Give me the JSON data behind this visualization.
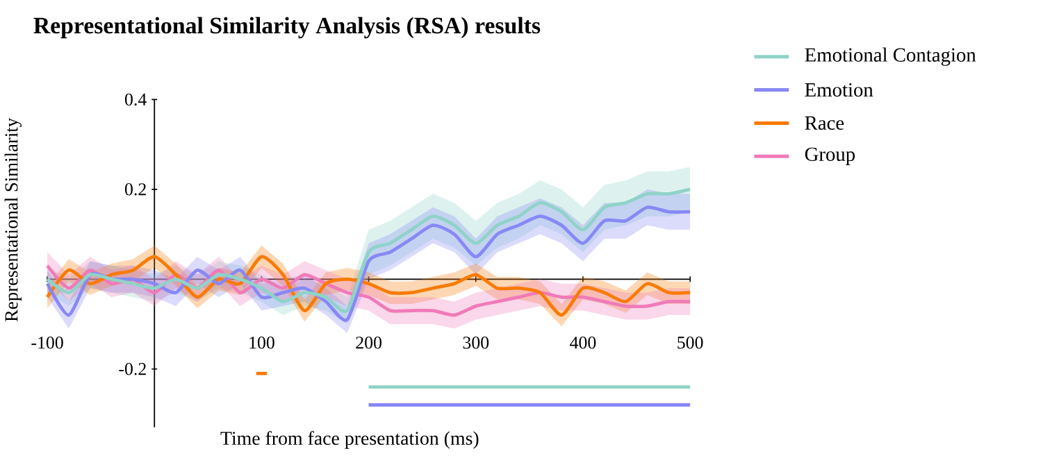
{
  "chart_data": {
    "type": "line",
    "title": "Representational Similarity Analysis (RSA) results",
    "xlabel": "Time from face presentation (ms)",
    "ylabel": "Representational Similarity",
    "x": [
      -100,
      -80,
      -60,
      -40,
      -20,
      0,
      20,
      40,
      60,
      80,
      100,
      120,
      140,
      160,
      180,
      200,
      220,
      240,
      260,
      280,
      300,
      320,
      340,
      360,
      380,
      400,
      420,
      440,
      460,
      480,
      500
    ],
    "series": [
      {
        "name": "Emotional Contagion",
        "color": "#8fd3c8",
        "values": [
          0.0,
          -0.03,
          0.01,
          0.0,
          -0.01,
          -0.02,
          0.0,
          -0.02,
          0.01,
          0.0,
          -0.02,
          -0.05,
          -0.03,
          -0.04,
          -0.07,
          0.06,
          0.08,
          0.11,
          0.14,
          0.12,
          0.08,
          0.12,
          0.14,
          0.17,
          0.15,
          0.11,
          0.16,
          0.17,
          0.19,
          0.19,
          0.2
        ],
        "lower": [
          -0.03,
          -0.06,
          -0.02,
          -0.03,
          -0.04,
          -0.05,
          -0.03,
          -0.05,
          -0.02,
          -0.03,
          -0.05,
          -0.08,
          -0.06,
          -0.07,
          -0.1,
          0.01,
          0.03,
          0.06,
          0.09,
          0.07,
          0.03,
          0.07,
          0.09,
          0.12,
          0.1,
          0.06,
          0.11,
          0.12,
          0.14,
          0.14,
          0.15
        ],
        "upper": [
          0.03,
          0.0,
          0.04,
          0.03,
          0.02,
          0.01,
          0.03,
          0.01,
          0.04,
          0.03,
          0.01,
          -0.02,
          0.0,
          -0.01,
          -0.04,
          0.11,
          0.13,
          0.16,
          0.19,
          0.17,
          0.13,
          0.17,
          0.19,
          0.22,
          0.2,
          0.16,
          0.21,
          0.22,
          0.24,
          0.24,
          0.25
        ]
      },
      {
        "name": "Emotion",
        "color": "#8888f5",
        "values": [
          -0.01,
          -0.08,
          0.01,
          0.0,
          0.0,
          -0.01,
          -0.03,
          0.02,
          -0.01,
          0.02,
          -0.04,
          -0.03,
          -0.02,
          -0.05,
          -0.09,
          0.04,
          0.06,
          0.09,
          0.12,
          0.1,
          0.05,
          0.1,
          0.12,
          0.14,
          0.12,
          0.08,
          0.13,
          0.13,
          0.16,
          0.15,
          0.15
        ],
        "lower": [
          -0.04,
          -0.11,
          -0.02,
          -0.03,
          -0.03,
          -0.04,
          -0.06,
          -0.01,
          -0.04,
          -0.01,
          -0.07,
          -0.06,
          -0.05,
          -0.08,
          -0.12,
          0.0,
          0.02,
          0.05,
          0.08,
          0.06,
          0.01,
          0.06,
          0.08,
          0.1,
          0.08,
          0.04,
          0.09,
          0.09,
          0.12,
          0.11,
          0.11
        ],
        "upper": [
          0.02,
          -0.05,
          0.04,
          0.03,
          0.03,
          0.02,
          0.0,
          0.05,
          0.02,
          0.05,
          -0.01,
          0.0,
          0.01,
          -0.02,
          -0.06,
          0.08,
          0.1,
          0.13,
          0.16,
          0.14,
          0.09,
          0.14,
          0.16,
          0.18,
          0.16,
          0.12,
          0.17,
          0.17,
          0.2,
          0.19,
          0.19
        ]
      },
      {
        "name": "Race",
        "color": "#f97b06",
        "values": [
          -0.04,
          0.02,
          -0.01,
          0.01,
          0.02,
          0.05,
          0.01,
          -0.04,
          0.0,
          -0.01,
          0.05,
          0.01,
          -0.07,
          -0.01,
          0.0,
          -0.01,
          -0.03,
          -0.03,
          -0.02,
          -0.01,
          0.01,
          -0.02,
          -0.02,
          -0.03,
          -0.08,
          -0.02,
          -0.03,
          -0.05,
          -0.01,
          -0.03,
          -0.03
        ],
        "lower": [
          -0.065,
          -0.005,
          -0.035,
          -0.015,
          -0.005,
          0.025,
          -0.015,
          -0.065,
          -0.025,
          -0.035,
          0.025,
          -0.015,
          -0.095,
          -0.035,
          -0.025,
          -0.035,
          -0.055,
          -0.055,
          -0.045,
          -0.035,
          -0.015,
          -0.045,
          -0.045,
          -0.055,
          -0.105,
          -0.045,
          -0.055,
          -0.075,
          -0.035,
          -0.055,
          -0.055
        ],
        "upper": [
          -0.015,
          0.045,
          0.015,
          0.035,
          0.045,
          0.075,
          0.035,
          -0.015,
          0.025,
          0.015,
          0.075,
          0.035,
          -0.045,
          0.015,
          0.025,
          0.015,
          -0.005,
          -0.005,
          0.005,
          0.015,
          0.035,
          0.005,
          0.005,
          -0.005,
          -0.055,
          0.005,
          -0.005,
          -0.025,
          0.015,
          -0.005,
          -0.005
        ]
      },
      {
        "name": "Group",
        "color": "#f07ab8",
        "values": [
          0.03,
          -0.02,
          0.02,
          -0.01,
          0.0,
          -0.03,
          0.01,
          -0.02,
          0.02,
          -0.03,
          0.0,
          -0.02,
          0.01,
          -0.01,
          -0.03,
          -0.04,
          -0.07,
          -0.07,
          -0.07,
          -0.08,
          -0.06,
          -0.05,
          -0.04,
          -0.03,
          -0.04,
          -0.04,
          -0.05,
          -0.06,
          -0.06,
          -0.05,
          -0.05
        ],
        "lower": [
          0.0,
          -0.05,
          -0.01,
          -0.04,
          -0.03,
          -0.06,
          -0.02,
          -0.05,
          -0.01,
          -0.06,
          -0.03,
          -0.05,
          -0.02,
          -0.04,
          -0.06,
          -0.07,
          -0.1,
          -0.1,
          -0.1,
          -0.11,
          -0.09,
          -0.08,
          -0.07,
          -0.06,
          -0.07,
          -0.07,
          -0.08,
          -0.09,
          -0.09,
          -0.08,
          -0.08
        ],
        "upper": [
          0.06,
          0.01,
          0.05,
          0.02,
          0.03,
          0.0,
          0.04,
          0.01,
          0.05,
          0.0,
          0.03,
          0.01,
          0.04,
          0.02,
          0.0,
          -0.01,
          -0.04,
          -0.04,
          -0.04,
          -0.05,
          -0.03,
          -0.02,
          -0.01,
          0.0,
          -0.01,
          -0.01,
          -0.02,
          -0.03,
          -0.03,
          -0.02,
          -0.02
        ]
      },
      {
        "type": "line",
        "color": "#f97b06",
        "x": [
          95,
          105
        ],
        "values": [
          -0.21,
          -0.21
        ]
      },
      {
        "type": "line",
        "color": "#8fd3c8",
        "x": [
          200,
          500
        ],
        "values": [
          -0.24,
          -0.24
        ]
      },
      {
        "type": "line",
        "color": "#8888f5",
        "x": [
          200,
          500
        ],
        "values": [
          -0.28,
          -0.28
        ]
      }
    ],
    "xlim": [
      -100,
      500
    ],
    "ylim": [
      -0.33,
      0.4
    ],
    "xticks": [
      -100,
      100,
      200,
      300,
      400,
      500
    ],
    "yticks": [
      -0.2,
      0.2,
      0.4
    ],
    "legend": "right",
    "line_style": "solid",
    "grid": false
  }
}
